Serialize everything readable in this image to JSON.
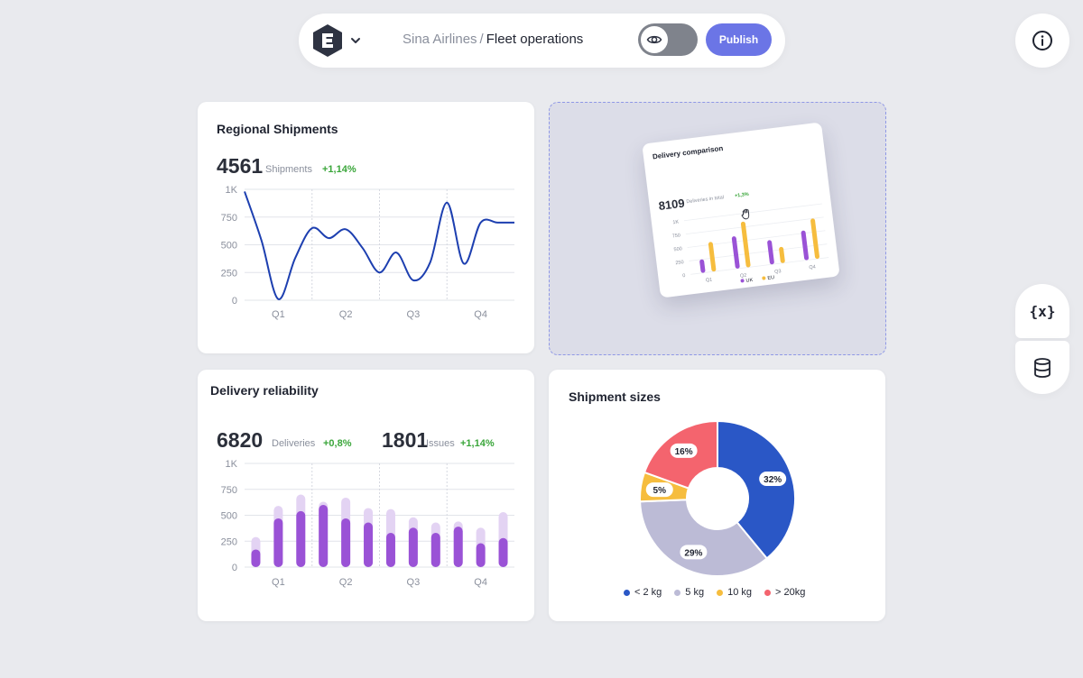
{
  "header": {
    "org": "Sina Airlines",
    "separator": "/",
    "page": "Fleet operations",
    "publish_label": "Publish"
  },
  "icons": {
    "logo": "logo-icon",
    "dropdown": "chevron-down-icon",
    "preview": "eye-icon",
    "info": "info-icon",
    "variables": "variables-icon",
    "variables_glyph": "{x}",
    "database": "database-icon"
  },
  "colors": {
    "accent": "#6b75e6",
    "line": "#1d3fb0",
    "bar_dark": "#9a52d6",
    "bar_light": "#e3d3f3",
    "positive": "#3aa63a",
    "uk": "#9a52d6",
    "eu": "#f6bd3e"
  },
  "regional": {
    "title": "Regional Shipments",
    "value": "4561",
    "label": "Shipments",
    "delta": "+1,14%"
  },
  "reliability": {
    "title": "Delivery reliability",
    "value1": "6820",
    "label1": "Deliveries",
    "delta1": "+0,8%",
    "value2": "1801",
    "label2": "Issues",
    "delta2": "+1,14%"
  },
  "preview": {
    "title": "Delivery comparison",
    "value": "8109",
    "label": "Deliveries in total",
    "delta": "+1,3%",
    "y_ticks": [
      "1K",
      "750",
      "500",
      "250",
      "0"
    ],
    "x_ticks": [
      "Q1",
      "Q2",
      "Q3",
      "Q4"
    ],
    "legend": [
      "UK",
      "EU"
    ]
  },
  "sizes": {
    "title": "Shipment sizes"
  },
  "chart_data": [
    {
      "type": "line",
      "title": "Regional Shipments",
      "y_ticks": [
        "1K",
        "750",
        "500",
        "250",
        "0"
      ],
      "x_ticks": [
        "Q1",
        "Q2",
        "Q3",
        "Q4"
      ],
      "ylim": [
        0,
        1000
      ],
      "grid": true,
      "x": [
        0,
        0.25,
        0.5,
        0.75,
        1,
        1.25,
        1.5,
        1.75,
        2,
        2.25,
        2.5,
        2.75,
        3,
        3.25,
        3.5,
        3.75,
        4
      ],
      "values": [
        980,
        540,
        10,
        380,
        650,
        560,
        640,
        470,
        250,
        430,
        180,
        340,
        880,
        330,
        700,
        700,
        700
      ]
    },
    {
      "type": "bar",
      "title": "Delivery reliability",
      "y_ticks": [
        "1K",
        "750",
        "500",
        "250",
        "0"
      ],
      "x_ticks": [
        "Q1",
        "Q2",
        "Q3",
        "Q4"
      ],
      "ylim": [
        0,
        1000
      ],
      "grid": true,
      "series": [
        {
          "values": [
            170,
            470,
            540,
            600,
            470,
            430,
            330,
            380,
            330,
            390,
            230,
            280
          ]
        },
        {
          "values": [
            290,
            590,
            700,
            630,
            670,
            570,
            560,
            480,
            430,
            440,
            380,
            530
          ]
        }
      ]
    },
    {
      "type": "pie",
      "title": "Shipment sizes",
      "categories": [
        "< 2 kg",
        "5 kg",
        "10 kg",
        "> 20kg"
      ],
      "values": [
        32,
        29,
        5,
        16
      ],
      "labels": [
        "32%",
        "29%",
        "5%",
        "16%"
      ],
      "colors": [
        "#2a57c6",
        "#bcbbd6",
        "#f6bd3e",
        "#f4646e"
      ]
    }
  ]
}
